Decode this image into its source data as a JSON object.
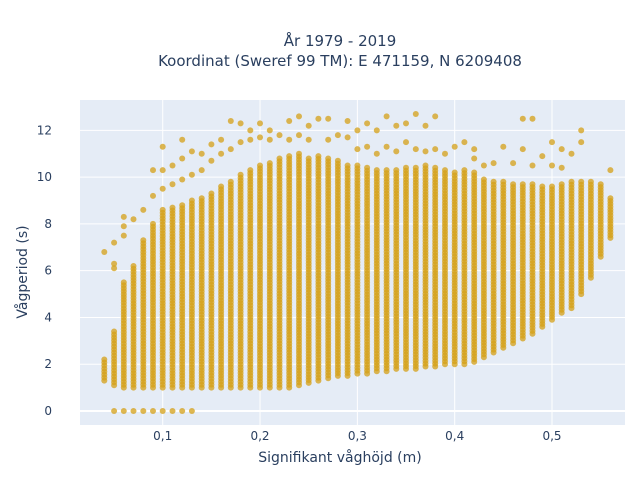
{
  "chart_data": {
    "type": "scatter",
    "title_lines": [
      "År 1979 - 2019",
      "Koordinat (Sweref 99 TM): E 471159, N 6209408"
    ],
    "xlabel": "Signifikant våghöjd (m)",
    "ylabel": "Vågperiod (s)",
    "xlim": [
      0.015,
      0.575
    ],
    "ylim": [
      -0.6,
      13.3
    ],
    "x_ticks": [
      {
        "value": 0.1,
        "label": "0,1"
      },
      {
        "value": 0.2,
        "label": "0,2"
      },
      {
        "value": 0.3,
        "label": "0,3"
      },
      {
        "value": 0.4,
        "label": "0,4"
      },
      {
        "value": 0.5,
        "label": "0,5"
      }
    ],
    "y_ticks": [
      {
        "value": 0,
        "label": "0"
      },
      {
        "value": 2,
        "label": "2"
      },
      {
        "value": 4,
        "label": "4"
      },
      {
        "value": 6,
        "label": "6"
      },
      {
        "value": 8,
        "label": "8"
      },
      {
        "value": 10,
        "label": "10"
      },
      {
        "value": 12,
        "label": "12"
      }
    ],
    "grid": true,
    "marker_color": "#d4a017",
    "plot_bg": "#e5ecf6",
    "x_step": 0.01,
    "series": [
      {
        "columns": [
          {
            "x": 0.04,
            "ymin": 1.3,
            "ymax": 2.2,
            "extra": [
              6.8
            ]
          },
          {
            "x": 0.05,
            "ymin": 1.1,
            "ymax": 3.4,
            "extra": [
              0,
              6.1,
              6.3,
              7.2
            ]
          },
          {
            "x": 0.06,
            "ymin": 1.0,
            "ymax": 5.5,
            "extra": [
              0,
              7.5,
              7.9,
              8.3
            ]
          },
          {
            "x": 0.07,
            "ymin": 1.0,
            "ymax": 6.2,
            "extra": [
              0,
              8.2
            ]
          },
          {
            "x": 0.08,
            "ymin": 1.0,
            "ymax": 7.3,
            "extra": [
              0,
              8.6
            ]
          },
          {
            "x": 0.09,
            "ymin": 1.0,
            "ymax": 8.0,
            "extra": [
              0,
              9.2,
              10.3
            ]
          },
          {
            "x": 0.1,
            "ymin": 1.0,
            "ymax": 8.6,
            "extra": [
              0,
              9.5,
              10.3,
              11.3
            ]
          },
          {
            "x": 0.11,
            "ymin": 1.0,
            "ymax": 8.7,
            "extra": [
              0,
              9.7,
              10.5
            ]
          },
          {
            "x": 0.12,
            "ymin": 1.0,
            "ymax": 8.8,
            "extra": [
              0,
              9.9,
              10.8,
              11.6
            ]
          },
          {
            "x": 0.13,
            "ymin": 1.0,
            "ymax": 9.0,
            "extra": [
              0,
              10.1,
              11.1
            ]
          },
          {
            "x": 0.14,
            "ymin": 1.0,
            "ymax": 9.1,
            "extra": [
              10.3,
              11.0
            ]
          },
          {
            "x": 0.15,
            "ymin": 1.0,
            "ymax": 9.3,
            "extra": [
              10.7,
              11.4
            ]
          },
          {
            "x": 0.16,
            "ymin": 1.0,
            "ymax": 9.6,
            "extra": [
              11.0,
              11.6
            ]
          },
          {
            "x": 0.17,
            "ymin": 1.0,
            "ymax": 9.8,
            "extra": [
              11.2,
              12.4
            ]
          },
          {
            "x": 0.18,
            "ymin": 1.0,
            "ymax": 10.1,
            "extra": [
              11.5,
              12.3
            ]
          },
          {
            "x": 0.19,
            "ymin": 1.0,
            "ymax": 10.3,
            "extra": [
              11.6,
              12.0
            ]
          },
          {
            "x": 0.2,
            "ymin": 1.0,
            "ymax": 10.5,
            "extra": [
              11.7,
              12.3
            ]
          },
          {
            "x": 0.21,
            "ymin": 1.0,
            "ymax": 10.6,
            "extra": [
              11.6,
              12.0
            ]
          },
          {
            "x": 0.22,
            "ymin": 1.0,
            "ymax": 10.8,
            "extra": [
              11.8
            ]
          },
          {
            "x": 0.23,
            "ymin": 1.0,
            "ymax": 10.9,
            "extra": [
              11.6,
              12.4
            ]
          },
          {
            "x": 0.24,
            "ymin": 1.1,
            "ymax": 11.0,
            "extra": [
              11.8,
              12.6
            ]
          },
          {
            "x": 0.25,
            "ymin": 1.2,
            "ymax": 10.8,
            "extra": [
              11.6,
              12.2
            ]
          },
          {
            "x": 0.26,
            "ymin": 1.3,
            "ymax": 10.9,
            "extra": [
              12.5
            ]
          },
          {
            "x": 0.27,
            "ymin": 1.4,
            "ymax": 10.8,
            "extra": [
              11.6,
              12.5
            ]
          },
          {
            "x": 0.28,
            "ymin": 1.5,
            "ymax": 10.7,
            "extra": [
              11.8
            ]
          },
          {
            "x": 0.29,
            "ymin": 1.5,
            "ymax": 10.5,
            "extra": [
              11.7,
              12.4
            ]
          },
          {
            "x": 0.3,
            "ymin": 1.6,
            "ymax": 10.5,
            "extra": [
              11.2,
              12.0
            ]
          },
          {
            "x": 0.31,
            "ymin": 1.6,
            "ymax": 10.4,
            "extra": [
              11.3,
              12.3
            ]
          },
          {
            "x": 0.32,
            "ymin": 1.7,
            "ymax": 10.3,
            "extra": [
              11.0,
              12.0
            ]
          },
          {
            "x": 0.33,
            "ymin": 1.7,
            "ymax": 10.3,
            "extra": [
              11.3,
              12.6
            ]
          },
          {
            "x": 0.34,
            "ymin": 1.8,
            "ymax": 10.3,
            "extra": [
              11.1,
              12.2
            ]
          },
          {
            "x": 0.35,
            "ymin": 1.8,
            "ymax": 10.4,
            "extra": [
              11.5,
              12.3
            ]
          },
          {
            "x": 0.36,
            "ymin": 1.8,
            "ymax": 10.4,
            "extra": [
              11.2,
              12.7
            ]
          },
          {
            "x": 0.37,
            "ymin": 1.9,
            "ymax": 10.5,
            "extra": [
              11.1,
              12.2
            ]
          },
          {
            "x": 0.38,
            "ymin": 1.9,
            "ymax": 10.4,
            "extra": [
              11.2,
              12.6
            ]
          },
          {
            "x": 0.39,
            "ymin": 2.0,
            "ymax": 10.3,
            "extra": [
              11.0
            ]
          },
          {
            "x": 0.4,
            "ymin": 2.0,
            "ymax": 10.2,
            "extra": [
              11.3
            ]
          },
          {
            "x": 0.41,
            "ymin": 2.0,
            "ymax": 10.3,
            "extra": [
              11.5
            ]
          },
          {
            "x": 0.42,
            "ymin": 2.1,
            "ymax": 10.2,
            "extra": [
              10.8,
              11.2
            ]
          },
          {
            "x": 0.43,
            "ymin": 2.3,
            "ymax": 9.9,
            "extra": [
              10.5
            ]
          },
          {
            "x": 0.44,
            "ymin": 2.5,
            "ymax": 9.8,
            "extra": [
              10.6
            ]
          },
          {
            "x": 0.45,
            "ymin": 2.7,
            "ymax": 9.8,
            "extra": [
              11.3
            ]
          },
          {
            "x": 0.46,
            "ymin": 2.9,
            "ymax": 9.7,
            "extra": [
              10.6
            ]
          },
          {
            "x": 0.47,
            "ymin": 3.1,
            "ymax": 9.7,
            "extra": [
              11.2,
              12.5
            ]
          },
          {
            "x": 0.48,
            "ymin": 3.3,
            "ymax": 9.7,
            "extra": [
              10.5,
              12.5
            ]
          },
          {
            "x": 0.49,
            "ymin": 3.6,
            "ymax": 9.6,
            "extra": [
              10.9
            ]
          },
          {
            "x": 0.5,
            "ymin": 3.9,
            "ymax": 9.6,
            "extra": [
              10.5,
              11.5
            ]
          },
          {
            "x": 0.51,
            "ymin": 4.2,
            "ymax": 9.7,
            "extra": [
              10.4,
              11.2
            ]
          },
          {
            "x": 0.52,
            "ymin": 4.4,
            "ymax": 9.8,
            "extra": [
              11.0
            ]
          },
          {
            "x": 0.53,
            "ymin": 5.0,
            "ymax": 9.8,
            "extra": [
              11.5,
              12.0
            ]
          },
          {
            "x": 0.54,
            "ymin": 5.7,
            "ymax": 9.8,
            "extra": []
          },
          {
            "x": 0.55,
            "ymin": 6.6,
            "ymax": 9.7,
            "extra": []
          },
          {
            "x": 0.56,
            "ymin": 7.4,
            "ymax": 9.1,
            "extra": [
              10.3
            ]
          }
        ]
      }
    ]
  }
}
